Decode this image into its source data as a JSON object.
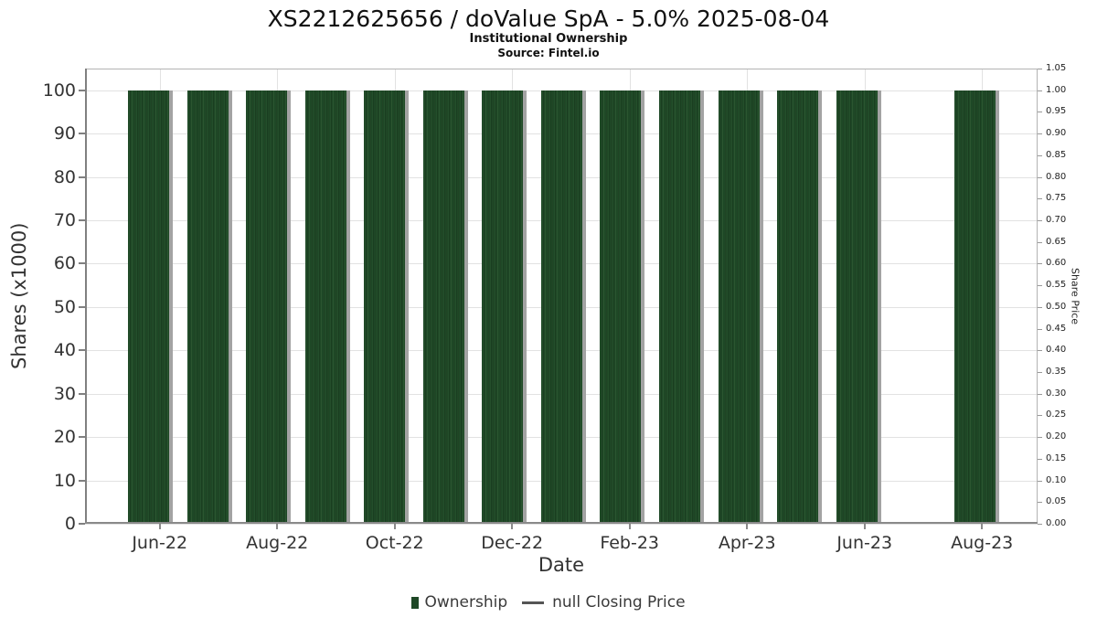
{
  "header": {
    "title": "XS2212625656 / doValue SpA - 5.0% 2025-08-04",
    "subtitle": "Institutional Ownership",
    "source": "Source: Fintel.io"
  },
  "legend": {
    "ownership_label": "Ownership",
    "closing_price_label": "null Closing Price"
  },
  "colors": {
    "bar_green": "#1e4826",
    "bar_stripe_light": "#2b5530",
    "bar_stripe_dark": "#16331a",
    "bar_shadow": "#a3a3a3",
    "gridline": "#e2e2e2",
    "axis_spine": "#808080",
    "tick_text": "#333333"
  },
  "chart_data": {
    "type": "bar",
    "title": "XS2212625656 / doValue SpA - 5.0% 2025-08-04",
    "subtitle": "Institutional Ownership",
    "source": "Source: Fintel.io",
    "categories": [
      "Jun-22",
      "Jul-22",
      "Aug-22",
      "Sep-22",
      "Oct-22",
      "Nov-22",
      "Dec-22",
      "Jan-23",
      "Feb-23",
      "Mar-23",
      "Apr-23",
      "May-23",
      "Jun-23",
      "Jul-23",
      "Aug-23"
    ],
    "series": [
      {
        "name": "Ownership",
        "type": "bar",
        "values": [
          100,
          100,
          100,
          100,
          100,
          100,
          100,
          100,
          100,
          100,
          100,
          100,
          100,
          null,
          100
        ]
      },
      {
        "name": "null Closing Price",
        "type": "line",
        "values": [
          null,
          null,
          null,
          null,
          null,
          null,
          null,
          null,
          null,
          null,
          null,
          null,
          null,
          null,
          null
        ]
      }
    ],
    "xlabel": "Date",
    "ylabel_left": "Shares (x1000)",
    "ylabel_right": "Share Price",
    "left_axis": {
      "ticks": [
        0,
        10,
        20,
        30,
        40,
        50,
        60,
        70,
        80,
        90,
        100
      ],
      "range": [
        0,
        105
      ]
    },
    "right_axis": {
      "ticks": [
        "0.00",
        "0.05",
        "0.10",
        "0.15",
        "0.20",
        "0.25",
        "0.30",
        "0.35",
        "0.40",
        "0.45",
        "0.50",
        "0.55",
        "0.60",
        "0.65",
        "0.70",
        "0.75",
        "0.80",
        "0.85",
        "0.90",
        "0.95",
        "1.00",
        "1.05"
      ],
      "range": [
        0,
        1.05
      ]
    },
    "x_tick_labels": [
      "Jun-22",
      "Aug-22",
      "Oct-22",
      "Dec-22",
      "Feb-23",
      "Apr-23",
      "Jun-23",
      "Aug-23"
    ],
    "grid": true,
    "legend_position": "bottom"
  }
}
